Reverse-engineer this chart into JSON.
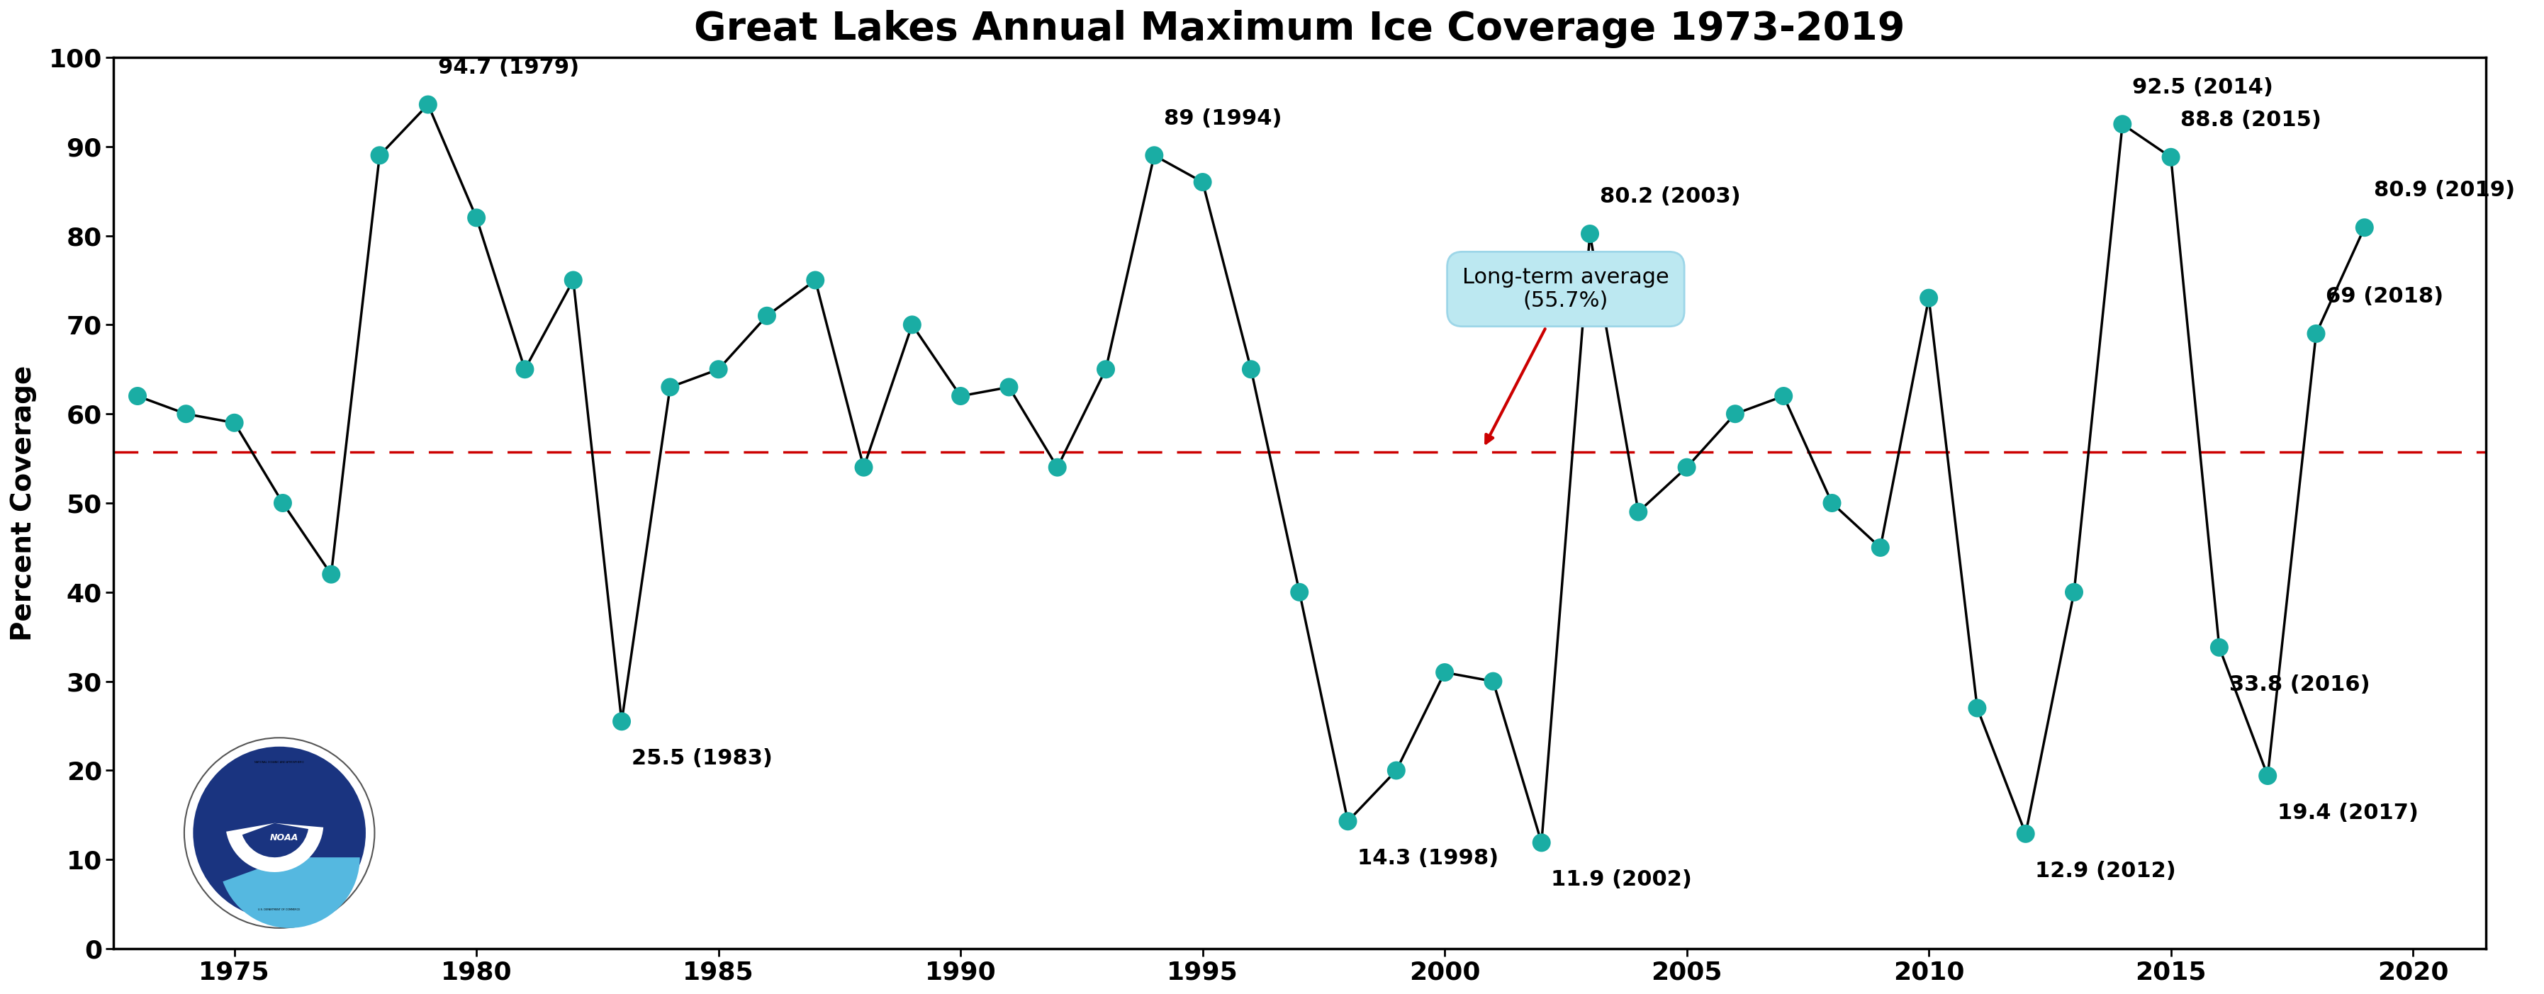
{
  "title": "Great Lakes Annual Maximum Ice Coverage 1973-2019",
  "ylabel": "Percent Coverage",
  "xlim": [
    1972.5,
    2021.5
  ],
  "ylim": [
    0,
    100
  ],
  "xticks": [
    1975,
    1980,
    1985,
    1990,
    1995,
    2000,
    2005,
    2010,
    2015,
    2020
  ],
  "yticks": [
    0,
    10,
    20,
    30,
    40,
    50,
    60,
    70,
    80,
    90,
    100
  ],
  "long_term_avg": 55.7,
  "line_color": "black",
  "dot_color": "#1AADA4",
  "avg_line_color": "#cc0000",
  "years": [
    1973,
    1974,
    1975,
    1976,
    1977,
    1978,
    1979,
    1980,
    1981,
    1982,
    1983,
    1984,
    1985,
    1986,
    1987,
    1988,
    1989,
    1990,
    1991,
    1992,
    1993,
    1994,
    1995,
    1996,
    1997,
    1998,
    1999,
    2000,
    2001,
    2002,
    2003,
    2004,
    2005,
    2006,
    2007,
    2008,
    2009,
    2010,
    2011,
    2012,
    2013,
    2014,
    2015,
    2016,
    2017,
    2018,
    2019
  ],
  "values": [
    62,
    60,
    59,
    50,
    42,
    89,
    94.7,
    82,
    65,
    75,
    25.5,
    63,
    65,
    71,
    75,
    54,
    70,
    62,
    63,
    54,
    65,
    89,
    86,
    65,
    40,
    14.3,
    20,
    31,
    30,
    11.9,
    80.2,
    49,
    54,
    60,
    62,
    50,
    45,
    73,
    27,
    12.9,
    40,
    92.5,
    88.8,
    33.8,
    19.4,
    69,
    80.9
  ],
  "annotations": [
    {
      "year": 1979,
      "value": 94.7,
      "label": "94.7 (1979)",
      "above": true
    },
    {
      "year": 1983,
      "value": 25.5,
      "label": "25.5 (1983)",
      "above": false
    },
    {
      "year": 1994,
      "value": 89,
      "label": "89 (1994)",
      "above": true
    },
    {
      "year": 1998,
      "value": 14.3,
      "label": "14.3 (1998)",
      "above": false
    },
    {
      "year": 2002,
      "value": 11.9,
      "label": "11.9 (2002)",
      "above": false
    },
    {
      "year": 2003,
      "value": 80.2,
      "label": "80.2 (2003)",
      "above": true
    },
    {
      "year": 2012,
      "value": 12.9,
      "label": "12.9 (2012)",
      "above": false
    },
    {
      "year": 2014,
      "value": 92.5,
      "label": "92.5 (2014)",
      "above": true
    },
    {
      "year": 2015,
      "value": 88.8,
      "label": "88.8 (2015)",
      "above": true
    },
    {
      "year": 2016,
      "value": 33.8,
      "label": "33.8 (2016)",
      "above": false
    },
    {
      "year": 2017,
      "value": 19.4,
      "label": "19.4 (2017)",
      "above": false
    },
    {
      "year": 2018,
      "value": 69,
      "label": "69 (2018)",
      "above": true
    },
    {
      "year": 2019,
      "value": 80.9,
      "label": "80.9 (2019)",
      "above": true
    }
  ],
  "callout_text": "Long-term average\n(55.7%)",
  "callout_facecolor": "#bce8f1",
  "callout_edgecolor": "#9dd6e8",
  "arrow_color": "#cc0000",
  "title_fontsize": 40,
  "axis_label_fontsize": 28,
  "tick_fontsize": 26,
  "annotation_fontsize": 22,
  "callout_fontsize": 22,
  "background_color": "white"
}
